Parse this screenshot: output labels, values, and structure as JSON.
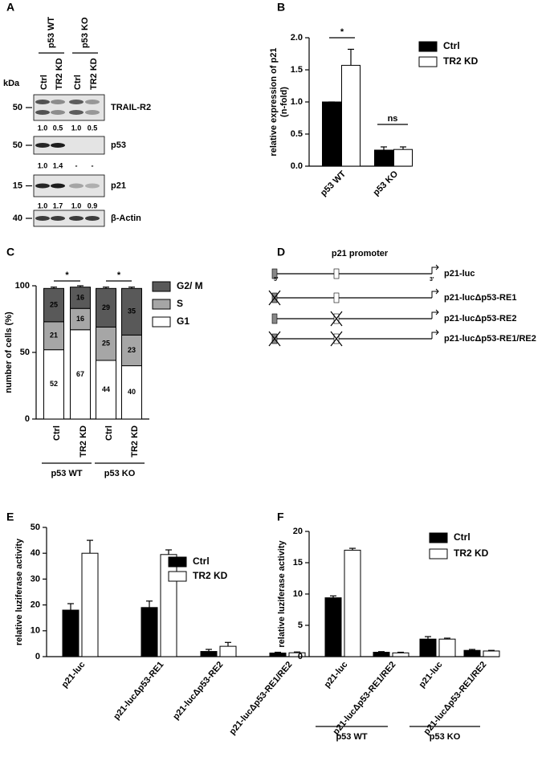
{
  "blot": {
    "panel": "A",
    "kda_label": "kDa",
    "groups": [
      "p53 WT",
      "p53 KO"
    ],
    "lanes": [
      "Ctrl",
      "TR2 KD",
      "Ctrl",
      "TR2 KD"
    ],
    "rows": [
      {
        "marker": "50",
        "name": "TRAIL-R2",
        "quant": [
          "1.0",
          "0.5",
          "1.0",
          "0.5"
        ]
      },
      {
        "marker": "50",
        "name": "p53",
        "quant": [
          "1.0",
          "1.4",
          "-",
          "-"
        ]
      },
      {
        "marker": "15",
        "name": "p21",
        "quant": [
          "1.0",
          "1.7",
          "1.0",
          "0.9"
        ]
      },
      {
        "marker": "40",
        "name": "β-Actin"
      }
    ]
  },
  "chart_data": [
    {
      "panel": "B",
      "type": "bar",
      "ylabel": [
        "relative expression of p21",
        "(n-fold)"
      ],
      "categories": [
        "p53 WT",
        "p53 KO"
      ],
      "series": [
        {
          "name": "Ctrl",
          "color": "#000000",
          "values": [
            1.0,
            0.25
          ],
          "errors": [
            0,
            0.05
          ]
        },
        {
          "name": "TR2 KD",
          "color": "#ffffff",
          "values": [
            1.57,
            0.26
          ],
          "errors": [
            0.25,
            0.04
          ]
        }
      ],
      "ylim": [
        0,
        2
      ],
      "yticks": [
        {
          "value": 0,
          "label": "0.0"
        },
        0.5,
        {
          "value": 1,
          "label": "1.0"
        },
        1.5,
        {
          "value": 2,
          "label": "2.0"
        }
      ],
      "annotations": [
        "*",
        "ns"
      ],
      "legend": "right"
    },
    {
      "panel": "C",
      "type": "stacked_bar",
      "ylabel": "number of cells (%)",
      "categories": [
        "Ctrl",
        "TR2 KD",
        "Ctrl",
        "TR2 KD"
      ],
      "groups": [
        "p53 WT",
        "p53 KO"
      ],
      "series": [
        {
          "name": "G1",
          "color": "#ffffff",
          "values": [
            52,
            67,
            44,
            40
          ],
          "errors": [
            1,
            1,
            1,
            1
          ]
        },
        {
          "name": "S",
          "color": "#a6a6a6",
          "values": [
            21,
            16,
            25,
            23
          ],
          "errors": [
            1,
            1,
            1,
            1
          ]
        },
        {
          "name": "G2/ M",
          "color": "#595959",
          "values": [
            25,
            16,
            29,
            35
          ],
          "errors": [
            1,
            1,
            1,
            1
          ]
        }
      ],
      "ylim": [
        0,
        100
      ],
      "yticks": [
        0,
        50,
        100
      ],
      "annotations": [
        "*",
        "*"
      ],
      "legend": "right"
    },
    {
      "panel": "E",
      "type": "bar",
      "ylabel": "relative luziferase activity",
      "categories": [
        "p21-luc",
        "p21-lucΔp53-RE1",
        "p21-lucΔp53-RE2",
        "p21-lucΔp53-RE1/RE2"
      ],
      "series": [
        {
          "name": "Ctrl",
          "color": "#000000",
          "values": [
            18,
            19,
            2,
            1.4
          ],
          "errors": [
            2.5,
            2.5,
            0.8,
            0.3
          ]
        },
        {
          "name": "TR2 KD",
          "color": "#ffffff",
          "values": [
            40,
            39.5,
            4,
            1.5
          ],
          "errors": [
            5,
            1.8,
            1.5,
            0.3
          ]
        }
      ],
      "ylim": [
        0,
        50
      ],
      "yticks": [
        0,
        10,
        20,
        30,
        40,
        50
      ],
      "legend": "right"
    },
    {
      "panel": "F",
      "type": "bar",
      "ylabel": "relative luziferase activity",
      "categories": [
        "p21-luc",
        "p21-lucΔp53-RE1/RE2",
        "p21-luc",
        "p21-lucΔp53-RE1/RE2"
      ],
      "groups": [
        "p53 WT",
        "p53 KO"
      ],
      "series": [
        {
          "name": "Ctrl",
          "color": "#000000",
          "values": [
            9.4,
            0.7,
            2.8,
            1.0
          ],
          "errors": [
            0.3,
            0.1,
            0.4,
            0.15
          ]
        },
        {
          "name": "TR2 KD",
          "color": "#ffffff",
          "values": [
            17,
            0.6,
            2.8,
            0.9
          ],
          "errors": [
            0.3,
            0.1,
            0.15,
            0.1
          ]
        }
      ],
      "ylim": [
        0,
        20
      ],
      "yticks": [
        0,
        5,
        10,
        15,
        20
      ],
      "legend": "right"
    }
  ],
  "diagram": {
    "panel": "D",
    "title": "p21 promoter",
    "five_prime": "5'",
    "three_prime": "3'",
    "constructs": [
      "p21-luc",
      "p21-lucΔp53-RE1",
      "p21-lucΔp53-RE2",
      "p21-lucΔp53-RE1/RE2"
    ]
  }
}
